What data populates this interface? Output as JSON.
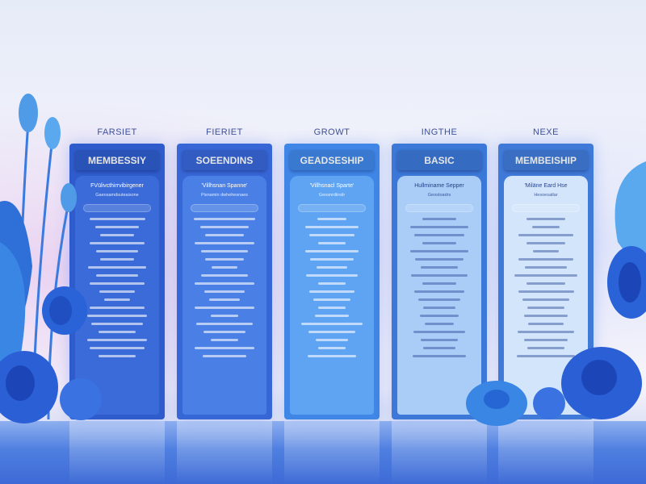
{
  "columns": [
    {
      "top_label": "FARSIET",
      "title": "MEMBESSIY",
      "line1": "FVülivcthirrvibirgener",
      "line2": "Gaeosamdsuteaisone",
      "color": "#2f5ccc",
      "panel": "#3a6bd8",
      "text": "#ffffff"
    },
    {
      "top_label": "FIERIET",
      "title": "SOEENDINS",
      "line1": "'Villhsnan Spanne'",
      "line2": "Pisnamin dwhehesnaes",
      "color": "#3766d6",
      "panel": "#4a80e6",
      "text": "#ffffff"
    },
    {
      "top_label": "GROWT",
      "title": "GEADSESHIP",
      "line1": "'Villhsnacl Sparte'",
      "line2": "Geosnrdiirsilr",
      "color": "#3f86e6",
      "panel": "#5fa4f2",
      "text": "#ffffff"
    },
    {
      "top_label": "INGTHE",
      "title": "BASIC",
      "line1": "Hullminame Sepper",
      "line2": "Geostoadrs",
      "color": "#3b78d8",
      "panel": "#a9cdf7",
      "text": "#23408f"
    },
    {
      "top_label": "NEXE",
      "title": "MEMBEISHIP",
      "line1": "'Miläne Eard Hse",
      "line2": "Hesoesatlar",
      "color": "#3f7ad8",
      "panel": "#d3e5fb",
      "text": "#2a4790"
    }
  ],
  "colors": {
    "accent": "#3a6bd8",
    "floor": "#4f7fe0",
    "background": "#f3f4fb"
  }
}
